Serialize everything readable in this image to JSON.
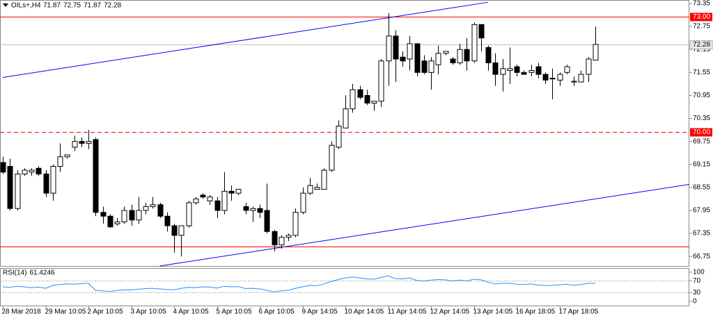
{
  "chart_data": [
    {
      "type": "candlestick",
      "title": "OILs+,H4",
      "header_values": [
        71.87,
        72.75,
        71.87,
        72.28
      ],
      "categories": [
        "28 Mar 2018",
        null,
        null,
        null,
        null,
        null,
        "29 Mar 10:05",
        null,
        null,
        null,
        null,
        null,
        "2 Apr 10:05",
        null,
        null,
        null,
        null,
        null,
        "3 Apr 10:05",
        null,
        null,
        null,
        null,
        null,
        "4 Apr 10:05",
        null,
        null,
        null,
        null,
        null,
        "5 Apr 10:05",
        null,
        null,
        null,
        null,
        null,
        "6 Apr 10:05",
        null,
        null,
        null,
        null,
        null,
        "9 Apr 14:05",
        null,
        null,
        null,
        null,
        null,
        "10 Apr 14:05",
        null,
        null,
        null,
        null,
        null,
        "11 Apr 14:05",
        null,
        null,
        null,
        null,
        null,
        "12 Apr 14:05",
        null,
        null,
        null,
        null,
        null,
        "13 Apr 14:05",
        null,
        null,
        null,
        null,
        null,
        "16 Apr 18:05",
        null,
        null,
        null,
        null,
        null,
        "17 Apr 18:05",
        null,
        null,
        null,
        null,
        null
      ],
      "open": [
        69.2,
        69.1,
        68.0,
        68.9,
        68.95,
        69.05,
        68.9,
        68.4,
        69.1,
        69.35,
        69.6,
        69.75,
        69.7,
        69.8,
        67.9,
        67.8,
        67.6,
        67.65,
        67.95,
        67.7,
        67.95,
        68.05,
        68.1,
        67.8,
        67.55,
        67.3,
        67.55,
        68.15,
        68.35,
        68.2,
        68.2,
        67.95,
        68.45,
        68.4,
        68.05,
        67.95,
        68.0,
        67.95,
        67.4,
        67.05,
        67.25,
        67.3,
        67.9,
        68.4,
        68.5,
        68.5,
        69.0,
        69.6,
        70.1,
        70.6,
        71.1,
        70.95,
        70.75,
        70.8,
        71.85,
        72.5,
        71.95,
        71.9,
        72.3,
        71.85,
        71.55,
        71.75,
        72.05,
        71.9,
        71.8,
        72.15,
        71.85,
        72.8,
        72.2,
        71.8,
        71.5,
        71.6,
        71.7,
        71.55,
        71.55,
        71.7,
        71.5,
        71.4,
        71.35,
        71.55,
        71.3,
        71.3,
        71.5,
        71.87
      ],
      "high": [
        69.35,
        69.3,
        69.0,
        69.05,
        69.05,
        69.1,
        69.0,
        69.15,
        69.7,
        69.4,
        69.9,
        69.85,
        70.05,
        69.85,
        68.05,
        67.85,
        67.75,
        68.05,
        68.1,
        68.3,
        68.15,
        68.3,
        68.15,
        67.9,
        67.6,
        67.55,
        68.2,
        68.3,
        68.4,
        68.35,
        68.3,
        68.95,
        68.6,
        68.5,
        68.15,
        68.05,
        68.1,
        68.65,
        67.45,
        67.3,
        67.35,
        68.0,
        68.55,
        68.8,
        68.65,
        69.05,
        69.75,
        70.3,
        70.95,
        71.25,
        71.2,
        71.1,
        70.8,
        71.9,
        73.1,
        72.65,
        72.1,
        72.5,
        72.3,
        72.0,
        71.95,
        72.25,
        72.1,
        71.95,
        72.3,
        72.45,
        72.85,
        72.8,
        72.25,
        72.05,
        71.9,
        72.2,
        71.75,
        71.6,
        71.75,
        71.8,
        71.55,
        71.65,
        71.55,
        71.75,
        71.45,
        71.6,
        71.95,
        72.75
      ],
      "low": [
        68.9,
        67.95,
        67.95,
        68.85,
        68.85,
        68.85,
        68.3,
        68.2,
        68.95,
        69.3,
        69.5,
        69.6,
        69.55,
        67.8,
        67.6,
        67.5,
        67.55,
        67.6,
        67.55,
        67.6,
        67.85,
        68.0,
        67.75,
        67.4,
        66.85,
        66.75,
        67.5,
        68.1,
        68.25,
        68.1,
        67.75,
        67.85,
        68.2,
        68.35,
        67.85,
        67.65,
        67.75,
        67.35,
        66.88,
        66.95,
        67.15,
        67.25,
        67.85,
        68.35,
        68.5,
        68.5,
        68.95,
        69.55,
        70.1,
        70.5,
        70.85,
        70.7,
        70.55,
        70.65,
        71.2,
        71.3,
        71.7,
        71.6,
        71.45,
        71.5,
        71.1,
        71.5,
        72.0,
        71.75,
        71.75,
        71.6,
        71.8,
        72.1,
        71.6,
        71.2,
        71.05,
        71.25,
        71.45,
        71.5,
        71.45,
        71.4,
        71.25,
        70.85,
        71.2,
        71.5,
        71.2,
        71.3,
        71.3,
        71.87
      ],
      "close": [
        68.95,
        68.0,
        68.9,
        69.0,
        69.0,
        68.9,
        68.4,
        69.1,
        69.35,
        69.4,
        69.75,
        69.7,
        69.75,
        67.9,
        67.8,
        67.52,
        67.65,
        67.95,
        67.7,
        67.95,
        68.05,
        68.1,
        67.8,
        67.55,
        67.3,
        67.55,
        68.15,
        68.25,
        68.3,
        68.3,
        67.95,
        68.45,
        68.4,
        68.5,
        67.95,
        68.0,
        67.9,
        67.4,
        67.05,
        67.25,
        67.3,
        67.9,
        68.4,
        68.6,
        68.55,
        69.0,
        69.65,
        70.15,
        70.6,
        71.1,
        70.9,
        70.75,
        70.8,
        71.85,
        72.5,
        71.9,
        71.85,
        72.3,
        71.55,
        71.55,
        71.85,
        72.05,
        72.1,
        71.8,
        72.15,
        71.85,
        72.8,
        72.45,
        71.8,
        71.5,
        71.65,
        71.65,
        71.55,
        71.5,
        71.6,
        71.5,
        71.35,
        71.38,
        71.5,
        71.7,
        71.32,
        71.5,
        71.9,
        72.28
      ],
      "ylim": [
        66.5,
        73.44
      ],
      "yticks": [
        {
          "value": 73.35,
          "label": "73.35"
        },
        {
          "value": 72.75,
          "label": "72.75"
        },
        {
          "value": 72.15,
          "label": "72.15"
        },
        {
          "value": 71.55,
          "label": "71.55"
        },
        {
          "value": 70.95,
          "label": "70.95"
        },
        {
          "value": 70.35,
          "label": "70.35"
        },
        {
          "value": 69.75,
          "label": "69.75"
        },
        {
          "value": 69.15,
          "label": "69.15"
        },
        {
          "value": 68.55,
          "label": "68.55"
        },
        {
          "value": 67.95,
          "label": "67.95"
        },
        {
          "value": 67.35,
          "label": "67.35"
        },
        {
          "value": 66.75,
          "label": "66.75"
        }
      ],
      "levels": [
        {
          "value": 73,
          "label": "73.00",
          "style": "solid",
          "color": "#ff0000"
        },
        {
          "value": 70,
          "label": "70.00",
          "style": "dashed",
          "color": "#ff0000"
        },
        {
          "value": 67,
          "style": "solid",
          "color": "#ff0000"
        }
      ],
      "trendlines": [
        {
          "x": [
            0,
            68
          ],
          "y": [
            71.42,
            73.38
          ],
          "color": "#0000ff",
          "ray": false
        },
        {
          "x": [
            22,
            83
          ],
          "y": [
            66.5,
            68.25
          ],
          "color": "#0000ff",
          "ray": true
        }
      ]
    },
    {
      "type": "line",
      "name": "RSI(14)",
      "color": "#1e90ff",
      "values": [
        50,
        48,
        52,
        50,
        47,
        49,
        45,
        55,
        58,
        60,
        59,
        61,
        62,
        38,
        36,
        34,
        37,
        40,
        39,
        42,
        44,
        45,
        43,
        41,
        40,
        45,
        48,
        47,
        50,
        49,
        46,
        52,
        50,
        51,
        44,
        45,
        43,
        38,
        33,
        36,
        38,
        45,
        50,
        55,
        54,
        60,
        68,
        75,
        80,
        84,
        80,
        77,
        76,
        82,
        88,
        78,
        77,
        80,
        72,
        70,
        73,
        75,
        74,
        70,
        73,
        70,
        76,
        74,
        66,
        60,
        62,
        62,
        59,
        58,
        60,
        56,
        54,
        55,
        57,
        59,
        55,
        58,
        62,
        61.4246
      ],
      "ylim": [
        -14,
        114
      ],
      "yticks": [
        100,
        70,
        30,
        0
      ],
      "levels": [
        70,
        30
      ]
    }
  ]
}
